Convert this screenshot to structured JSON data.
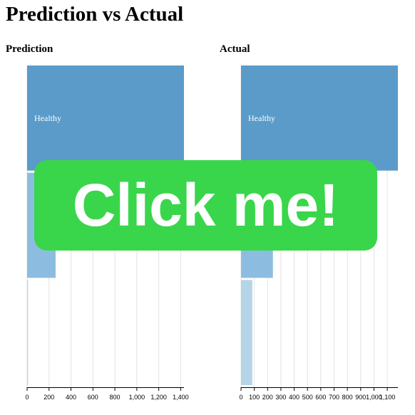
{
  "page": {
    "title": "Prediction vs Actual"
  },
  "cta": {
    "label": "Click me!",
    "color": "#39d64b"
  },
  "chart_data": [
    {
      "type": "bar",
      "orientation": "horizontal",
      "title": "Prediction",
      "categories": [
        "Healthy",
        "",
        ""
      ],
      "values": [
        1430,
        260,
        8
      ],
      "colors": [
        "#5a9bc9",
        "#8cbde0",
        "#b5d4e8"
      ],
      "xlim": [
        0,
        1430
      ],
      "xticks": [
        0,
        200,
        400,
        600,
        800,
        1000,
        1200,
        1400
      ],
      "xtick_labels": [
        "0",
        "200",
        "400",
        "600",
        "800",
        "1,000",
        "1,200",
        "1,400"
      ],
      "grid": true
    },
    {
      "type": "bar",
      "orientation": "horizontal",
      "title": "Actual",
      "categories": [
        "Healthy",
        "",
        ""
      ],
      "values": [
        1180,
        240,
        85
      ],
      "colors": [
        "#5a9bc9",
        "#8cbde0",
        "#b5d4e8"
      ],
      "xlim": [
        0,
        1180
      ],
      "xticks": [
        0,
        100,
        200,
        300,
        400,
        500,
        600,
        700,
        800,
        900,
        1000,
        1100
      ],
      "xtick_labels": [
        "0",
        "100",
        "200",
        "300",
        "400",
        "500",
        "600",
        "700",
        "800",
        "900",
        "1,000",
        "1,100"
      ],
      "grid": true
    }
  ]
}
